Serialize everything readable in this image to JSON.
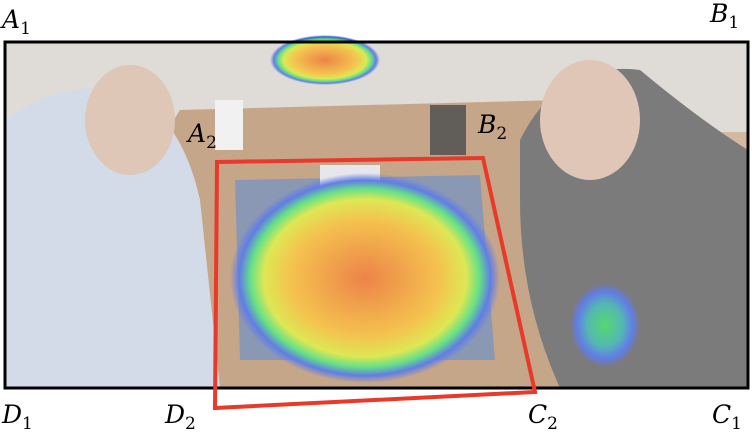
{
  "labels": [
    {
      "letter": "A",
      "sub": "1"
    },
    {
      "letter": "B",
      "sub": "1"
    },
    {
      "letter": "C",
      "sub": "1"
    },
    {
      "letter": "D",
      "sub": "1"
    },
    {
      "letter": "A",
      "sub": "2"
    },
    {
      "letter": "B",
      "sub": "2"
    },
    {
      "letter": "C",
      "sub": "2"
    },
    {
      "letter": "D",
      "sub": "2"
    }
  ]
}
